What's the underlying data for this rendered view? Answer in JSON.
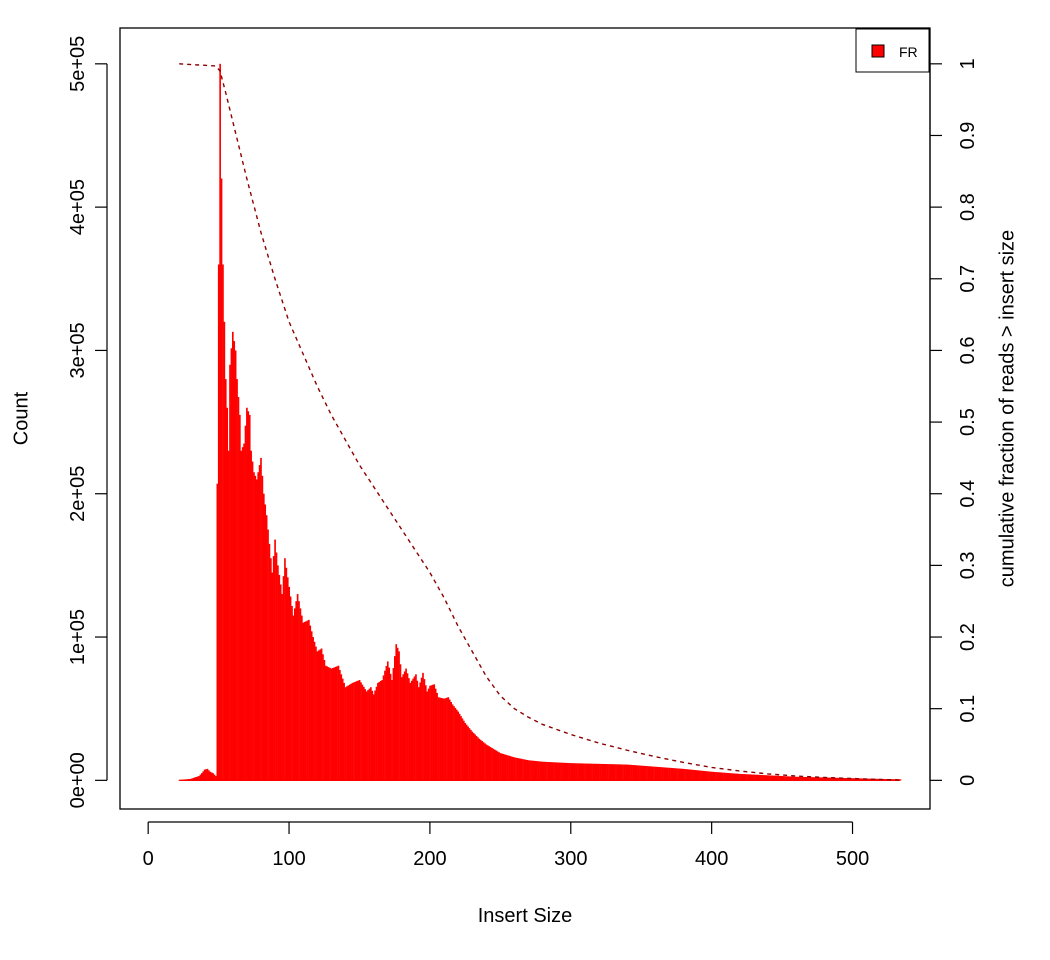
{
  "chart_data": {
    "type": "bar",
    "title": "",
    "xlabel": "Insert Size",
    "ylabel": "Count",
    "y2label": "cumulative fraction of reads > insert size",
    "xlim": [
      -20,
      555
    ],
    "ylim": [
      -20000,
      525000
    ],
    "y2lim": [
      0,
      1
    ],
    "x_ticks": [
      0,
      100,
      200,
      300,
      400,
      500
    ],
    "x_tick_labels": [
      "0",
      "100",
      "200",
      "300",
      "400",
      "500"
    ],
    "y_ticks": [
      0,
      100000,
      200000,
      300000,
      400000,
      500000
    ],
    "y_tick_labels": [
      "0e+00",
      "1e+05",
      "2e+05",
      "3e+05",
      "4e+05",
      "5e+05"
    ],
    "y2_ticks": [
      0,
      0.1,
      0.2,
      0.3,
      0.4,
      0.5,
      0.6,
      0.7,
      0.8,
      0.9,
      1
    ],
    "y2_tick_labels": [
      "0",
      "0.1",
      "0.2",
      "0.3",
      "0.4",
      "0.5",
      "0.6",
      "0.7",
      "0.8",
      "0.9",
      "1"
    ],
    "legend": {
      "position": "top-right",
      "entries": [
        {
          "label": "FR",
          "color": "#ff0000"
        }
      ]
    },
    "histogram_color": "#ff0000",
    "cumulative_color": "#8b0000",
    "histogram": {
      "name": "FR",
      "x": [
        22,
        30,
        36,
        38,
        40,
        42,
        44,
        46,
        48,
        49,
        50,
        51,
        52,
        53,
        54,
        55,
        56,
        57,
        58,
        60,
        62,
        63,
        65,
        66,
        68,
        70,
        72,
        73,
        75,
        77,
        80,
        82,
        84,
        86,
        88,
        90,
        92,
        95,
        97,
        100,
        103,
        106,
        110,
        114,
        117,
        120,
        123,
        126,
        130,
        135,
        140,
        145,
        150,
        155,
        158,
        160,
        163,
        166,
        170,
        173,
        176,
        178,
        180,
        183,
        186,
        190,
        192,
        195,
        198,
        200,
        203,
        206,
        210,
        213,
        216,
        220,
        225,
        230,
        235,
        240,
        245,
        250,
        260,
        270,
        280,
        290,
        300,
        320,
        340,
        360,
        380,
        400,
        420,
        440,
        460,
        480,
        500,
        520,
        534
      ],
      "values": [
        300,
        1000,
        3000,
        5000,
        7500,
        8000,
        6000,
        5000,
        3000,
        207000,
        360000,
        500000,
        420000,
        360000,
        320000,
        280000,
        260000,
        230000,
        290000,
        313000,
        300000,
        280000,
        255000,
        230000,
        235000,
        260000,
        255000,
        230000,
        215000,
        210000,
        225000,
        200000,
        185000,
        165000,
        145000,
        168000,
        150000,
        130000,
        155000,
        135000,
        115000,
        130000,
        110000,
        112000,
        100000,
        90000,
        92000,
        80000,
        78000,
        80000,
        65000,
        68000,
        70000,
        62000,
        65000,
        60000,
        68000,
        70000,
        83000,
        70000,
        95000,
        90000,
        72000,
        78000,
        68000,
        74000,
        65000,
        75000,
        62000,
        66000,
        67000,
        58000,
        57000,
        58000,
        53000,
        48000,
        40000,
        34000,
        29000,
        25000,
        22000,
        19000,
        16000,
        14000,
        13000,
        12500,
        12000,
        11500,
        11000,
        9500,
        8000,
        6000,
        4500,
        3500,
        2500,
        2000,
        1500,
        1000,
        700
      ]
    },
    "cumulative": {
      "name": "cumulative fraction of reads > insert size",
      "x": [
        22,
        48,
        51,
        55,
        60,
        70,
        80,
        90,
        100,
        110,
        120,
        130,
        140,
        150,
        160,
        170,
        180,
        190,
        200,
        210,
        220,
        230,
        240,
        250,
        260,
        270,
        280,
        300,
        320,
        340,
        360,
        380,
        400,
        420,
        440,
        460,
        480,
        500,
        520,
        534
      ],
      "values": [
        1.0,
        0.997,
        0.99,
        0.96,
        0.92,
        0.84,
        0.765,
        0.7,
        0.64,
        0.595,
        0.55,
        0.51,
        0.475,
        0.44,
        0.41,
        0.38,
        0.35,
        0.32,
        0.29,
        0.255,
        0.215,
        0.18,
        0.145,
        0.118,
        0.1,
        0.088,
        0.078,
        0.064,
        0.052,
        0.042,
        0.033,
        0.025,
        0.018,
        0.013,
        0.009,
        0.006,
        0.004,
        0.0025,
        0.0012,
        0.0005
      ]
    }
  }
}
